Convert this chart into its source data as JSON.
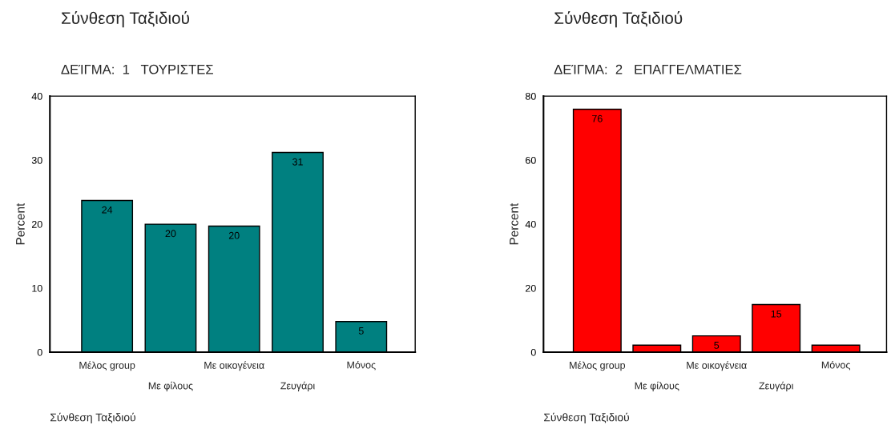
{
  "chart_data": [
    {
      "type": "bar",
      "title": "Σύνθεση Ταξιδιού",
      "subtitle": "ΔΕΊΓΜΑ:  1   ΤΟΥΡΙΣΤΕΣ",
      "xlabel": "Σύνθεση Ταξιδιού",
      "ylabel": "Percent",
      "categories": [
        "Μέλος group",
        "Με φίλους",
        "Με οικογένεια",
        "Ζευγάρι",
        "Μόνος"
      ],
      "values": [
        23.7,
        20.0,
        19.7,
        31.2,
        4.8
      ],
      "value_labels": [
        "24",
        "20",
        "20",
        "31",
        "5"
      ],
      "color": "#008080",
      "ylim": [
        0,
        40
      ],
      "yticks": [
        0,
        10,
        20,
        30,
        40
      ],
      "grid": false
    },
    {
      "type": "bar",
      "title": "Σύνθεση Ταξιδιού",
      "subtitle": "ΔΕΊΓΜΑ:  2   ΕΠΑΓΓΕΛΜΑΤΙΕΣ",
      "xlabel": "Σύνθεση Ταξιδιού",
      "ylabel": "Percent",
      "categories": [
        "Μέλος group",
        "Με φίλους",
        "Με οικογένεια",
        "Ζευγάρι",
        "Μόνος"
      ],
      "values": [
        75.9,
        2.2,
        5.1,
        14.9,
        2.2
      ],
      "value_labels": [
        "76",
        null,
        "5",
        "15",
        null
      ],
      "color": "#ff0000",
      "ylim": [
        0,
        80
      ],
      "yticks": [
        0,
        20,
        40,
        60,
        80
      ],
      "grid": false
    }
  ]
}
